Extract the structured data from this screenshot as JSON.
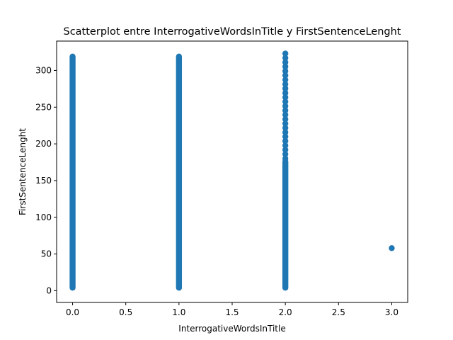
{
  "chart_data": {
    "type": "scatter",
    "title": "Scatterplot entre InterrogativeWordsInTitle y FirstSentenceLenght",
    "xlabel": "InterrogativeWordsInTitle",
    "ylabel": "FirstSentenceLenght",
    "xlim": [
      -0.15,
      3.15
    ],
    "ylim": [
      -16,
      340
    ],
    "xticks": [
      0.0,
      0.5,
      1.0,
      1.5,
      2.0,
      2.5,
      3.0
    ],
    "xtick_labels": [
      "0.0",
      "0.5",
      "1.0",
      "1.5",
      "2.0",
      "2.5",
      "3.0"
    ],
    "yticks": [
      0,
      50,
      100,
      150,
      200,
      250,
      300
    ],
    "ytick_labels": [
      "0",
      "50",
      "100",
      "150",
      "200",
      "250",
      "300"
    ],
    "grid": false,
    "legend": "none",
    "marker_color": "#1f77b4",
    "series": [
      {
        "columns": [
          {
            "x": 0,
            "y_min": 0,
            "y_max": 323,
            "dense_min": 0,
            "dense_max": 323
          },
          {
            "x": 1,
            "y_min": 0,
            "y_max": 323,
            "dense_min": 0,
            "dense_max": 323
          },
          {
            "x": 2,
            "y_min": 0,
            "y_max": 323,
            "dense_min": 0,
            "dense_max": 180
          },
          {
            "x": 3,
            "y_min": 58,
            "y_max": 58,
            "dense_min": 58,
            "dense_max": 58
          }
        ]
      }
    ]
  }
}
